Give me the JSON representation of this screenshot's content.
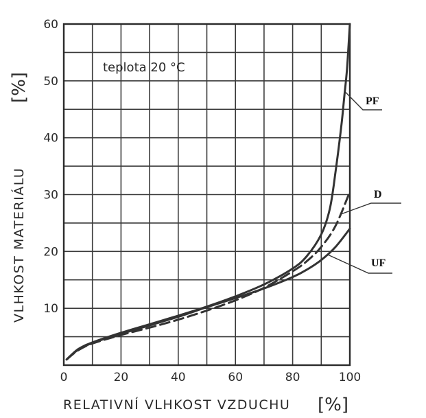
{
  "chart_data": {
    "type": "line",
    "title": "",
    "annotation": "teplota  20 °C",
    "xlabel": "RELATIVNÍ VLHKOST VZDUCHU",
    "xunit": "[%]",
    "ylabel": "VLHKOST MATERIÁLU",
    "yunit": "[%]",
    "xlim": [
      0,
      100
    ],
    "ylim": [
      0,
      60
    ],
    "xticks": [
      0,
      20,
      40,
      60,
      80,
      100
    ],
    "yticks": [
      10,
      20,
      30,
      40,
      50,
      60
    ],
    "x_minor_step": 10,
    "y_minor_step": 5,
    "grid": true,
    "series": [
      {
        "name": "PF",
        "style": "solid",
        "x": [
          1,
          5,
          10,
          20,
          30,
          40,
          50,
          60,
          70,
          80,
          85,
          90,
          93,
          95,
          97,
          98,
          99,
          100
        ],
        "y": [
          1,
          2.8,
          4,
          5.7,
          7.2,
          8.7,
          10.3,
          12.1,
          14.2,
          17,
          19.2,
          23,
          27.5,
          34,
          42,
          47,
          52,
          60
        ]
      },
      {
        "name": "D",
        "style": "dashed",
        "x": [
          1,
          5,
          10,
          20,
          30,
          40,
          50,
          60,
          70,
          80,
          85,
          90,
          95,
          100
        ],
        "y": [
          1,
          2.6,
          3.8,
          5.3,
          6.6,
          8,
          9.6,
          11.4,
          13.6,
          16.5,
          18.3,
          20.8,
          24.5,
          30.5
        ]
      },
      {
        "name": "UF",
        "style": "solid",
        "x": [
          1,
          5,
          10,
          20,
          30,
          40,
          50,
          60,
          70,
          80,
          85,
          90,
          95,
          100
        ],
        "y": [
          1,
          2.7,
          3.9,
          5.5,
          7,
          8.5,
          10.2,
          11.8,
          13.5,
          15.5,
          16.8,
          18.5,
          20.8,
          24
        ]
      }
    ]
  }
}
